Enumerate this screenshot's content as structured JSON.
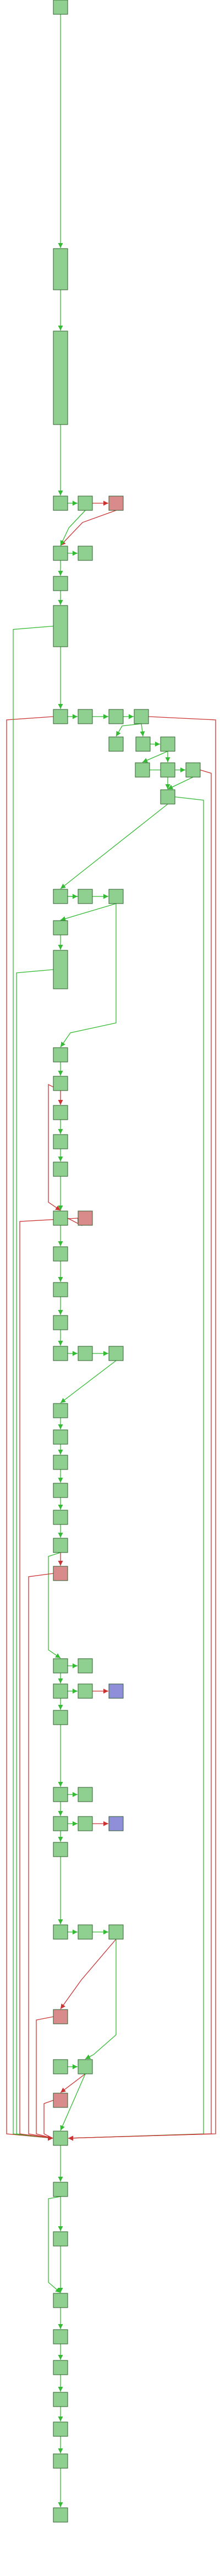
{
  "colors": {
    "node_normal": "#8fcf8f",
    "node_exit": "#d98a8a",
    "node_call": "#8f8fd9",
    "edge_flow": "#33bb33",
    "edge_branch": "#cc3333"
  },
  "nodes": [
    {
      "id": "n1",
      "kind": "normal"
    },
    {
      "id": "n2",
      "kind": "normal"
    },
    {
      "id": "n3",
      "kind": "normal"
    },
    {
      "id": "n4",
      "kind": "normal"
    },
    {
      "id": "n5",
      "kind": "normal"
    },
    {
      "id": "n6",
      "kind": "exit"
    },
    {
      "id": "n7",
      "kind": "normal"
    },
    {
      "id": "n8",
      "kind": "normal"
    },
    {
      "id": "n9",
      "kind": "normal"
    },
    {
      "id": "n10",
      "kind": "normal"
    },
    {
      "id": "n11",
      "kind": "normal"
    },
    {
      "id": "n12",
      "kind": "normal"
    },
    {
      "id": "n13",
      "kind": "normal"
    },
    {
      "id": "n14",
      "kind": "normal"
    },
    {
      "id": "n15",
      "kind": "normal"
    },
    {
      "id": "n16",
      "kind": "normal"
    },
    {
      "id": "n17",
      "kind": "normal"
    },
    {
      "id": "n18",
      "kind": "normal"
    },
    {
      "id": "n19",
      "kind": "normal"
    },
    {
      "id": "n20",
      "kind": "normal"
    },
    {
      "id": "n21",
      "kind": "normal"
    },
    {
      "id": "n22",
      "kind": "normal"
    },
    {
      "id": "n23",
      "kind": "normal"
    },
    {
      "id": "n24",
      "kind": "normal"
    },
    {
      "id": "n25",
      "kind": "normal"
    },
    {
      "id": "n26",
      "kind": "normal"
    },
    {
      "id": "n27",
      "kind": "normal"
    },
    {
      "id": "n28",
      "kind": "normal"
    },
    {
      "id": "n29",
      "kind": "normal"
    },
    {
      "id": "n30",
      "kind": "normal"
    },
    {
      "id": "n31",
      "kind": "normal"
    },
    {
      "id": "n32",
      "kind": "normal"
    },
    {
      "id": "n33",
      "kind": "exit"
    },
    {
      "id": "n34",
      "kind": "normal"
    },
    {
      "id": "n35",
      "kind": "normal"
    },
    {
      "id": "n36",
      "kind": "normal"
    },
    {
      "id": "n37",
      "kind": "normal"
    },
    {
      "id": "n38",
      "kind": "normal"
    },
    {
      "id": "n39",
      "kind": "normal"
    },
    {
      "id": "n40",
      "kind": "normal"
    },
    {
      "id": "n41",
      "kind": "normal"
    },
    {
      "id": "n42",
      "kind": "normal"
    },
    {
      "id": "n43",
      "kind": "normal"
    },
    {
      "id": "n44",
      "kind": "normal"
    },
    {
      "id": "n45",
      "kind": "normal"
    },
    {
      "id": "n46",
      "kind": "exit"
    },
    {
      "id": "n47",
      "kind": "normal"
    },
    {
      "id": "n48",
      "kind": "normal"
    },
    {
      "id": "n49",
      "kind": "normal"
    },
    {
      "id": "n50",
      "kind": "normal"
    },
    {
      "id": "n51",
      "kind": "call"
    },
    {
      "id": "n52",
      "kind": "normal"
    },
    {
      "id": "n53",
      "kind": "normal"
    },
    {
      "id": "n54",
      "kind": "normal"
    },
    {
      "id": "n55",
      "kind": "normal"
    },
    {
      "id": "n56",
      "kind": "normal"
    },
    {
      "id": "n57",
      "kind": "call"
    },
    {
      "id": "n58",
      "kind": "normal"
    },
    {
      "id": "n59",
      "kind": "normal"
    },
    {
      "id": "n60",
      "kind": "normal"
    },
    {
      "id": "n61",
      "kind": "normal"
    },
    {
      "id": "n62",
      "kind": "exit"
    },
    {
      "id": "n63",
      "kind": "normal"
    },
    {
      "id": "n64",
      "kind": "normal"
    },
    {
      "id": "n65",
      "kind": "exit"
    },
    {
      "id": "n66",
      "kind": "normal"
    },
    {
      "id": "n67",
      "kind": "normal"
    },
    {
      "id": "n68",
      "kind": "normal"
    },
    {
      "id": "n69",
      "kind": "normal"
    },
    {
      "id": "n70",
      "kind": "normal"
    },
    {
      "id": "n71",
      "kind": "normal"
    },
    {
      "id": "n72",
      "kind": "normal"
    },
    {
      "id": "n73",
      "kind": "normal"
    },
    {
      "id": "n74",
      "kind": "normal"
    },
    {
      "id": "n75",
      "kind": "normal"
    }
  ],
  "edges": [
    {
      "from": "n1",
      "to": "n2",
      "kind": "flow"
    },
    {
      "from": "n2",
      "to": "n3",
      "kind": "flow"
    },
    {
      "from": "n3",
      "to": "n4",
      "kind": "flow"
    },
    {
      "from": "n4",
      "to": "n5",
      "kind": "flow"
    },
    {
      "from": "n5",
      "to": "n6",
      "kind": "branch"
    },
    {
      "from": "n6",
      "to": "n7",
      "kind": "branch"
    },
    {
      "from": "n5",
      "to": "n7",
      "kind": "flow"
    },
    {
      "from": "n7",
      "to": "n8",
      "kind": "flow"
    },
    {
      "from": "n7",
      "to": "n9",
      "kind": "flow"
    },
    {
      "from": "n9",
      "to": "n10",
      "kind": "flow"
    },
    {
      "from": "n10",
      "to": "n11",
      "kind": "flow"
    },
    {
      "from": "n11",
      "to": "n12",
      "kind": "flow"
    },
    {
      "from": "n12",
      "to": "n13",
      "kind": "flow"
    },
    {
      "from": "n13",
      "to": "n14",
      "kind": "flow"
    },
    {
      "from": "n14",
      "to": "n15",
      "kind": "flow"
    },
    {
      "from": "n14",
      "to": "n16",
      "kind": "flow"
    },
    {
      "from": "n16",
      "to": "n17",
      "kind": "flow"
    },
    {
      "from": "n17",
      "to": "n18",
      "kind": "flow"
    },
    {
      "from": "n17",
      "to": "n19",
      "kind": "flow"
    },
    {
      "from": "n18",
      "to": "n20",
      "kind": "flow"
    },
    {
      "from": "n20",
      "to": "n21",
      "kind": "flow"
    },
    {
      "from": "n19",
      "to": "n21",
      "kind": "flow"
    },
    {
      "from": "n21",
      "to": "n22",
      "kind": "flow"
    },
    {
      "from": "n22",
      "to": "n23",
      "kind": "flow"
    },
    {
      "from": "n22",
      "to": "n24",
      "kind": "flow"
    },
    {
      "from": "n24",
      "to": "n25",
      "kind": "flow"
    },
    {
      "from": "n25",
      "to": "n26",
      "kind": "flow"
    },
    {
      "from": "n24",
      "to": "n27",
      "kind": "flow"
    },
    {
      "from": "n27",
      "to": "n28",
      "kind": "flow"
    },
    {
      "from": "n28",
      "to": "n29",
      "kind": "branch"
    },
    {
      "from": "n29",
      "to": "n30",
      "kind": "flow"
    },
    {
      "from": "n30",
      "to": "n31",
      "kind": "flow"
    },
    {
      "from": "n31",
      "to": "n32",
      "kind": "flow"
    },
    {
      "from": "n28",
      "to": "n32",
      "kind": "branch"
    },
    {
      "from": "n32",
      "to": "n33",
      "kind": "branch"
    },
    {
      "from": "n32",
      "to": "n34",
      "kind": "flow"
    },
    {
      "from": "n34",
      "to": "n35",
      "kind": "flow"
    },
    {
      "from": "n35",
      "to": "n36",
      "kind": "flow"
    },
    {
      "from": "n36",
      "to": "n37",
      "kind": "flow"
    },
    {
      "from": "n37",
      "to": "n38",
      "kind": "flow"
    },
    {
      "from": "n38",
      "to": "n39",
      "kind": "flow"
    },
    {
      "from": "n39",
      "to": "n40",
      "kind": "flow"
    },
    {
      "from": "n40",
      "to": "n41",
      "kind": "flow"
    },
    {
      "from": "n41",
      "to": "n42",
      "kind": "flow"
    },
    {
      "from": "n42",
      "to": "n43",
      "kind": "flow"
    },
    {
      "from": "n43",
      "to": "n44",
      "kind": "flow"
    },
    {
      "from": "n44",
      "to": "n45",
      "kind": "flow"
    },
    {
      "from": "n45",
      "to": "n46",
      "kind": "branch"
    },
    {
      "from": "n45",
      "to": "n47",
      "kind": "flow"
    },
    {
      "from": "n47",
      "to": "n48",
      "kind": "flow"
    },
    {
      "from": "n47",
      "to": "n49",
      "kind": "flow"
    },
    {
      "from": "n49",
      "to": "n50",
      "kind": "flow"
    },
    {
      "from": "n50",
      "to": "n51",
      "kind": "branch"
    },
    {
      "from": "n49",
      "to": "n52",
      "kind": "flow"
    },
    {
      "from": "n52",
      "to": "n53",
      "kind": "flow"
    },
    {
      "from": "n53",
      "to": "n54",
      "kind": "flow"
    },
    {
      "from": "n53",
      "to": "n55",
      "kind": "flow"
    },
    {
      "from": "n55",
      "to": "n56",
      "kind": "flow"
    },
    {
      "from": "n56",
      "to": "n57",
      "kind": "branch"
    },
    {
      "from": "n55",
      "to": "n58",
      "kind": "flow"
    },
    {
      "from": "n58",
      "to": "n59",
      "kind": "flow"
    },
    {
      "from": "n59",
      "to": "n60",
      "kind": "flow"
    },
    {
      "from": "n60",
      "to": "n61",
      "kind": "flow"
    },
    {
      "from": "n61",
      "to": "n62",
      "kind": "branch"
    },
    {
      "from": "n61",
      "to": "n64",
      "kind": "flow"
    },
    {
      "from": "n63",
      "to": "n64",
      "kind": "flow"
    },
    {
      "from": "n64",
      "to": "n65",
      "kind": "branch"
    },
    {
      "from": "n64",
      "to": "n66",
      "kind": "flow"
    },
    {
      "from": "n66",
      "to": "n67",
      "kind": "flow"
    },
    {
      "from": "n67",
      "to": "n68",
      "kind": "flow"
    },
    {
      "from": "n68",
      "to": "n69",
      "kind": "flow"
    },
    {
      "from": "n67",
      "to": "n69",
      "kind": "flow"
    },
    {
      "from": "n69",
      "to": "n70",
      "kind": "flow"
    },
    {
      "from": "n70",
      "to": "n71",
      "kind": "flow"
    },
    {
      "from": "n71",
      "to": "n72",
      "kind": "flow"
    },
    {
      "from": "n72",
      "to": "n73",
      "kind": "flow"
    },
    {
      "from": "n73",
      "to": "n74",
      "kind": "flow"
    },
    {
      "from": "n74",
      "to": "n75",
      "kind": "flow"
    }
  ]
}
